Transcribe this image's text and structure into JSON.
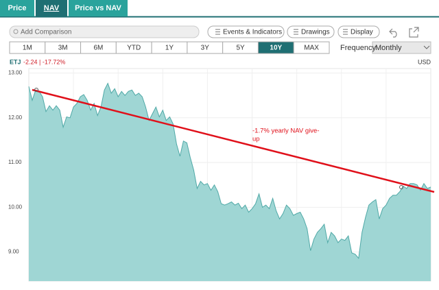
{
  "tabs": [
    "Price",
    "NAV",
    "Price vs NAV"
  ],
  "toolbar": {
    "search": "Add Comparison",
    "buttons": [
      "Events & Indicators",
      "Drawings",
      "Display"
    ]
  },
  "ranges": [
    "1M",
    "3M",
    "6M",
    "YTD",
    "1Y",
    "3Y",
    "5Y",
    "10Y",
    "MAX"
  ],
  "frequency": {
    "label": "Frequency",
    "value": "Monthly"
  },
  "chart_data": {
    "type": "area",
    "ticker": "ETJ",
    "change": "-2.24 | -17.72%",
    "currency": "USD",
    "annotation": [
      "-1.7% yearly NAV give-",
      "up"
    ],
    "color": "#9fd6d4",
    "line_color": "#4fa8a6",
    "trend_color": "#e0101a",
    "ylim": [
      8.35,
      13.1
    ],
    "yticks": [
      {
        "value": 9,
        "label": "9.00"
      },
      {
        "value": 10,
        "label": "10.00"
      },
      {
        "value": 11,
        "label": "11.00"
      },
      {
        "value": 12,
        "label": "12.00"
      },
      {
        "value": 13,
        "label": "13.00"
      }
    ],
    "grid": true,
    "values": [
      12.7,
      12.39,
      12.62,
      12.59,
      12.47,
      12.14,
      12.27,
      12.17,
      12.27,
      12.17,
      11.79,
      12.02,
      12.0,
      12.24,
      12.32,
      12.47,
      12.52,
      12.39,
      12.17,
      12.32,
      12.05,
      12.24,
      12.62,
      12.77,
      12.55,
      12.65,
      12.47,
      12.59,
      12.5,
      12.59,
      12.62,
      12.5,
      12.55,
      12.47,
      12.24,
      11.94,
      12.09,
      12.24,
      12.02,
      12.17,
      11.94,
      12.02,
      11.86,
      11.41,
      11.14,
      11.48,
      11.44,
      11.11,
      10.83,
      10.42,
      10.58,
      10.5,
      10.53,
      10.38,
      10.5,
      10.35,
      10.08,
      10.05,
      10.08,
      10.12,
      10.05,
      10.09,
      9.97,
      10.05,
      9.89,
      9.97,
      10.08,
      10.3,
      10.0,
      10.05,
      9.97,
      10.2,
      9.92,
      9.74,
      9.86,
      10.05,
      9.97,
      9.82,
      9.86,
      9.89,
      9.74,
      9.52,
      9.03,
      9.29,
      9.44,
      9.52,
      9.62,
      9.21,
      9.44,
      9.36,
      9.21,
      9.29,
      9.26,
      9.36,
      8.98,
      8.95,
      8.86,
      9.44,
      9.77,
      10.05,
      10.12,
      10.17,
      9.74,
      9.97,
      10.05,
      10.2,
      10.27,
      10.27,
      10.35,
      10.47,
      10.42,
      10.53,
      10.53,
      10.5,
      10.38,
      10.53,
      10.42,
      10.45
    ]
  }
}
